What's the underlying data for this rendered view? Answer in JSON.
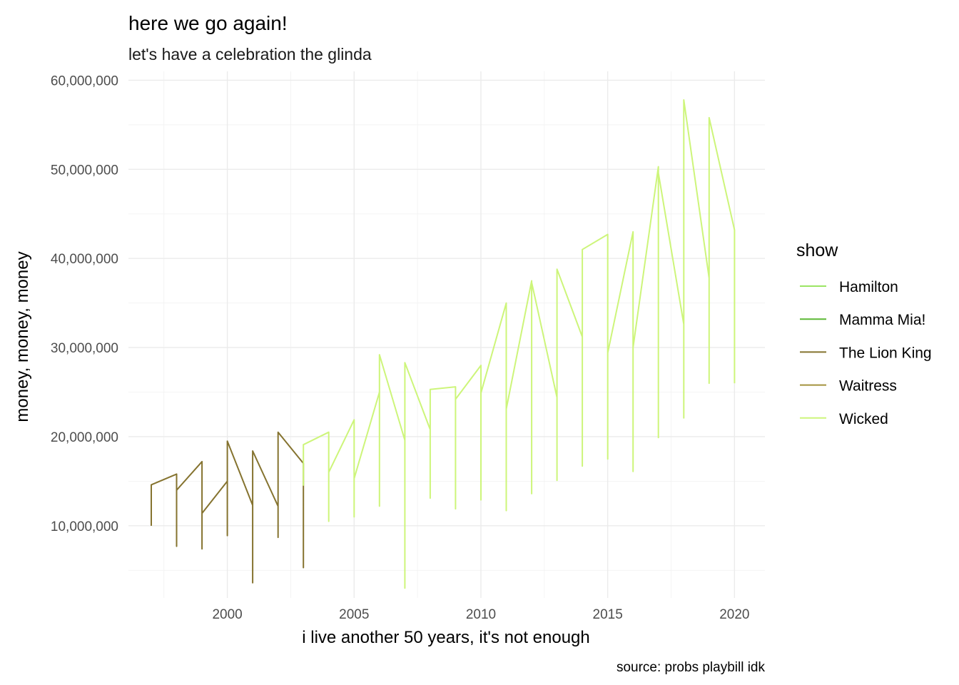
{
  "chart_data": {
    "type": "line",
    "title": "here we go again!",
    "subtitle": "let's have a celebration the glinda",
    "xlabel": "i live another 50 years, it's not enough",
    "ylabel": "money, money, money",
    "caption": "source: probs playbill idk",
    "xlim": [
      1996.1,
      2021.2
    ],
    "ylim": [
      1900000,
      61000000
    ],
    "x_ticks": [
      2000,
      2005,
      2010,
      2015,
      2020
    ],
    "x_tick_labels": [
      "2000",
      "2005",
      "2010",
      "2015",
      "2020"
    ],
    "y_ticks": [
      10000000,
      20000000,
      30000000,
      40000000,
      50000000,
      60000000
    ],
    "y_tick_labels": [
      "10,000,000",
      "20,000,000",
      "30,000,000",
      "40,000,000",
      "50,000,000",
      "60,000,000"
    ],
    "grid": true,
    "legend": {
      "title": "show",
      "position": "right",
      "entries": [
        {
          "name": "Hamilton",
          "color": "#9be564"
        },
        {
          "name": "Mamma Mia!",
          "color": "#5db835"
        },
        {
          "name": "The Lion King",
          "color": "#85732f"
        },
        {
          "name": "Waitress",
          "color": "#a3923d"
        },
        {
          "name": "Wicked",
          "color": "#cdf57a"
        }
      ]
    },
    "series": [
      {
        "name": "The Lion King",
        "color": "#85732f",
        "points": [
          [
            1997,
            10000000
          ],
          [
            1997,
            14600000
          ],
          [
            1998,
            15800000
          ],
          [
            1998,
            7700000
          ],
          [
            1998,
            14000000
          ],
          [
            1999,
            17200000
          ],
          [
            1999,
            7400000
          ],
          [
            1999,
            11400000
          ],
          [
            2000,
            15000000
          ],
          [
            2000,
            8900000
          ],
          [
            2000,
            19500000
          ],
          [
            2001,
            12300000
          ],
          [
            2001,
            3600000
          ],
          [
            2001,
            18400000
          ],
          [
            2002,
            12200000
          ],
          [
            2002,
            8700000
          ],
          [
            2002,
            20500000
          ],
          [
            2003,
            17000000
          ],
          [
            2003,
            5300000
          ],
          [
            2003,
            14100000
          ]
        ]
      },
      {
        "name": "Wicked",
        "color": "#cdf57a",
        "points": [
          [
            2003,
            14500000
          ],
          [
            2003,
            19100000
          ],
          [
            2004,
            20500000
          ],
          [
            2004,
            10500000
          ],
          [
            2004,
            16000000
          ],
          [
            2005,
            21900000
          ],
          [
            2005,
            11000000
          ],
          [
            2005,
            15300000
          ],
          [
            2006,
            25000000
          ],
          [
            2006,
            12200000
          ],
          [
            2006,
            29200000
          ],
          [
            2007,
            19600000
          ],
          [
            2007,
            3000000
          ],
          [
            2007,
            28300000
          ],
          [
            2008,
            20800000
          ],
          [
            2008,
            13100000
          ],
          [
            2008,
            25300000
          ],
          [
            2009,
            25600000
          ],
          [
            2009,
            11900000
          ],
          [
            2009,
            24200000
          ],
          [
            2010,
            28000000
          ],
          [
            2010,
            12900000
          ],
          [
            2010,
            24900000
          ],
          [
            2011,
            35000000
          ],
          [
            2011,
            11700000
          ],
          [
            2011,
            23100000
          ],
          [
            2012,
            37500000
          ],
          [
            2012,
            13600000
          ],
          [
            2012,
            37300000
          ],
          [
            2013,
            24400000
          ],
          [
            2013,
            15100000
          ],
          [
            2013,
            38800000
          ],
          [
            2014,
            31200000
          ],
          [
            2014,
            16700000
          ],
          [
            2014,
            41000000
          ],
          [
            2015,
            42700000
          ],
          [
            2015,
            17500000
          ],
          [
            2015,
            29400000
          ],
          [
            2016,
            43000000
          ],
          [
            2016,
            16100000
          ],
          [
            2016,
            30000000
          ],
          [
            2017,
            50300000
          ],
          [
            2017,
            19900000
          ],
          [
            2017,
            49600000
          ],
          [
            2018,
            32600000
          ],
          [
            2018,
            22100000
          ],
          [
            2018,
            57800000
          ],
          [
            2019,
            37800000
          ],
          [
            2019,
            26000000
          ],
          [
            2019,
            55800000
          ],
          [
            2020,
            43200000
          ],
          [
            2020,
            26000000
          ]
        ]
      }
    ]
  }
}
